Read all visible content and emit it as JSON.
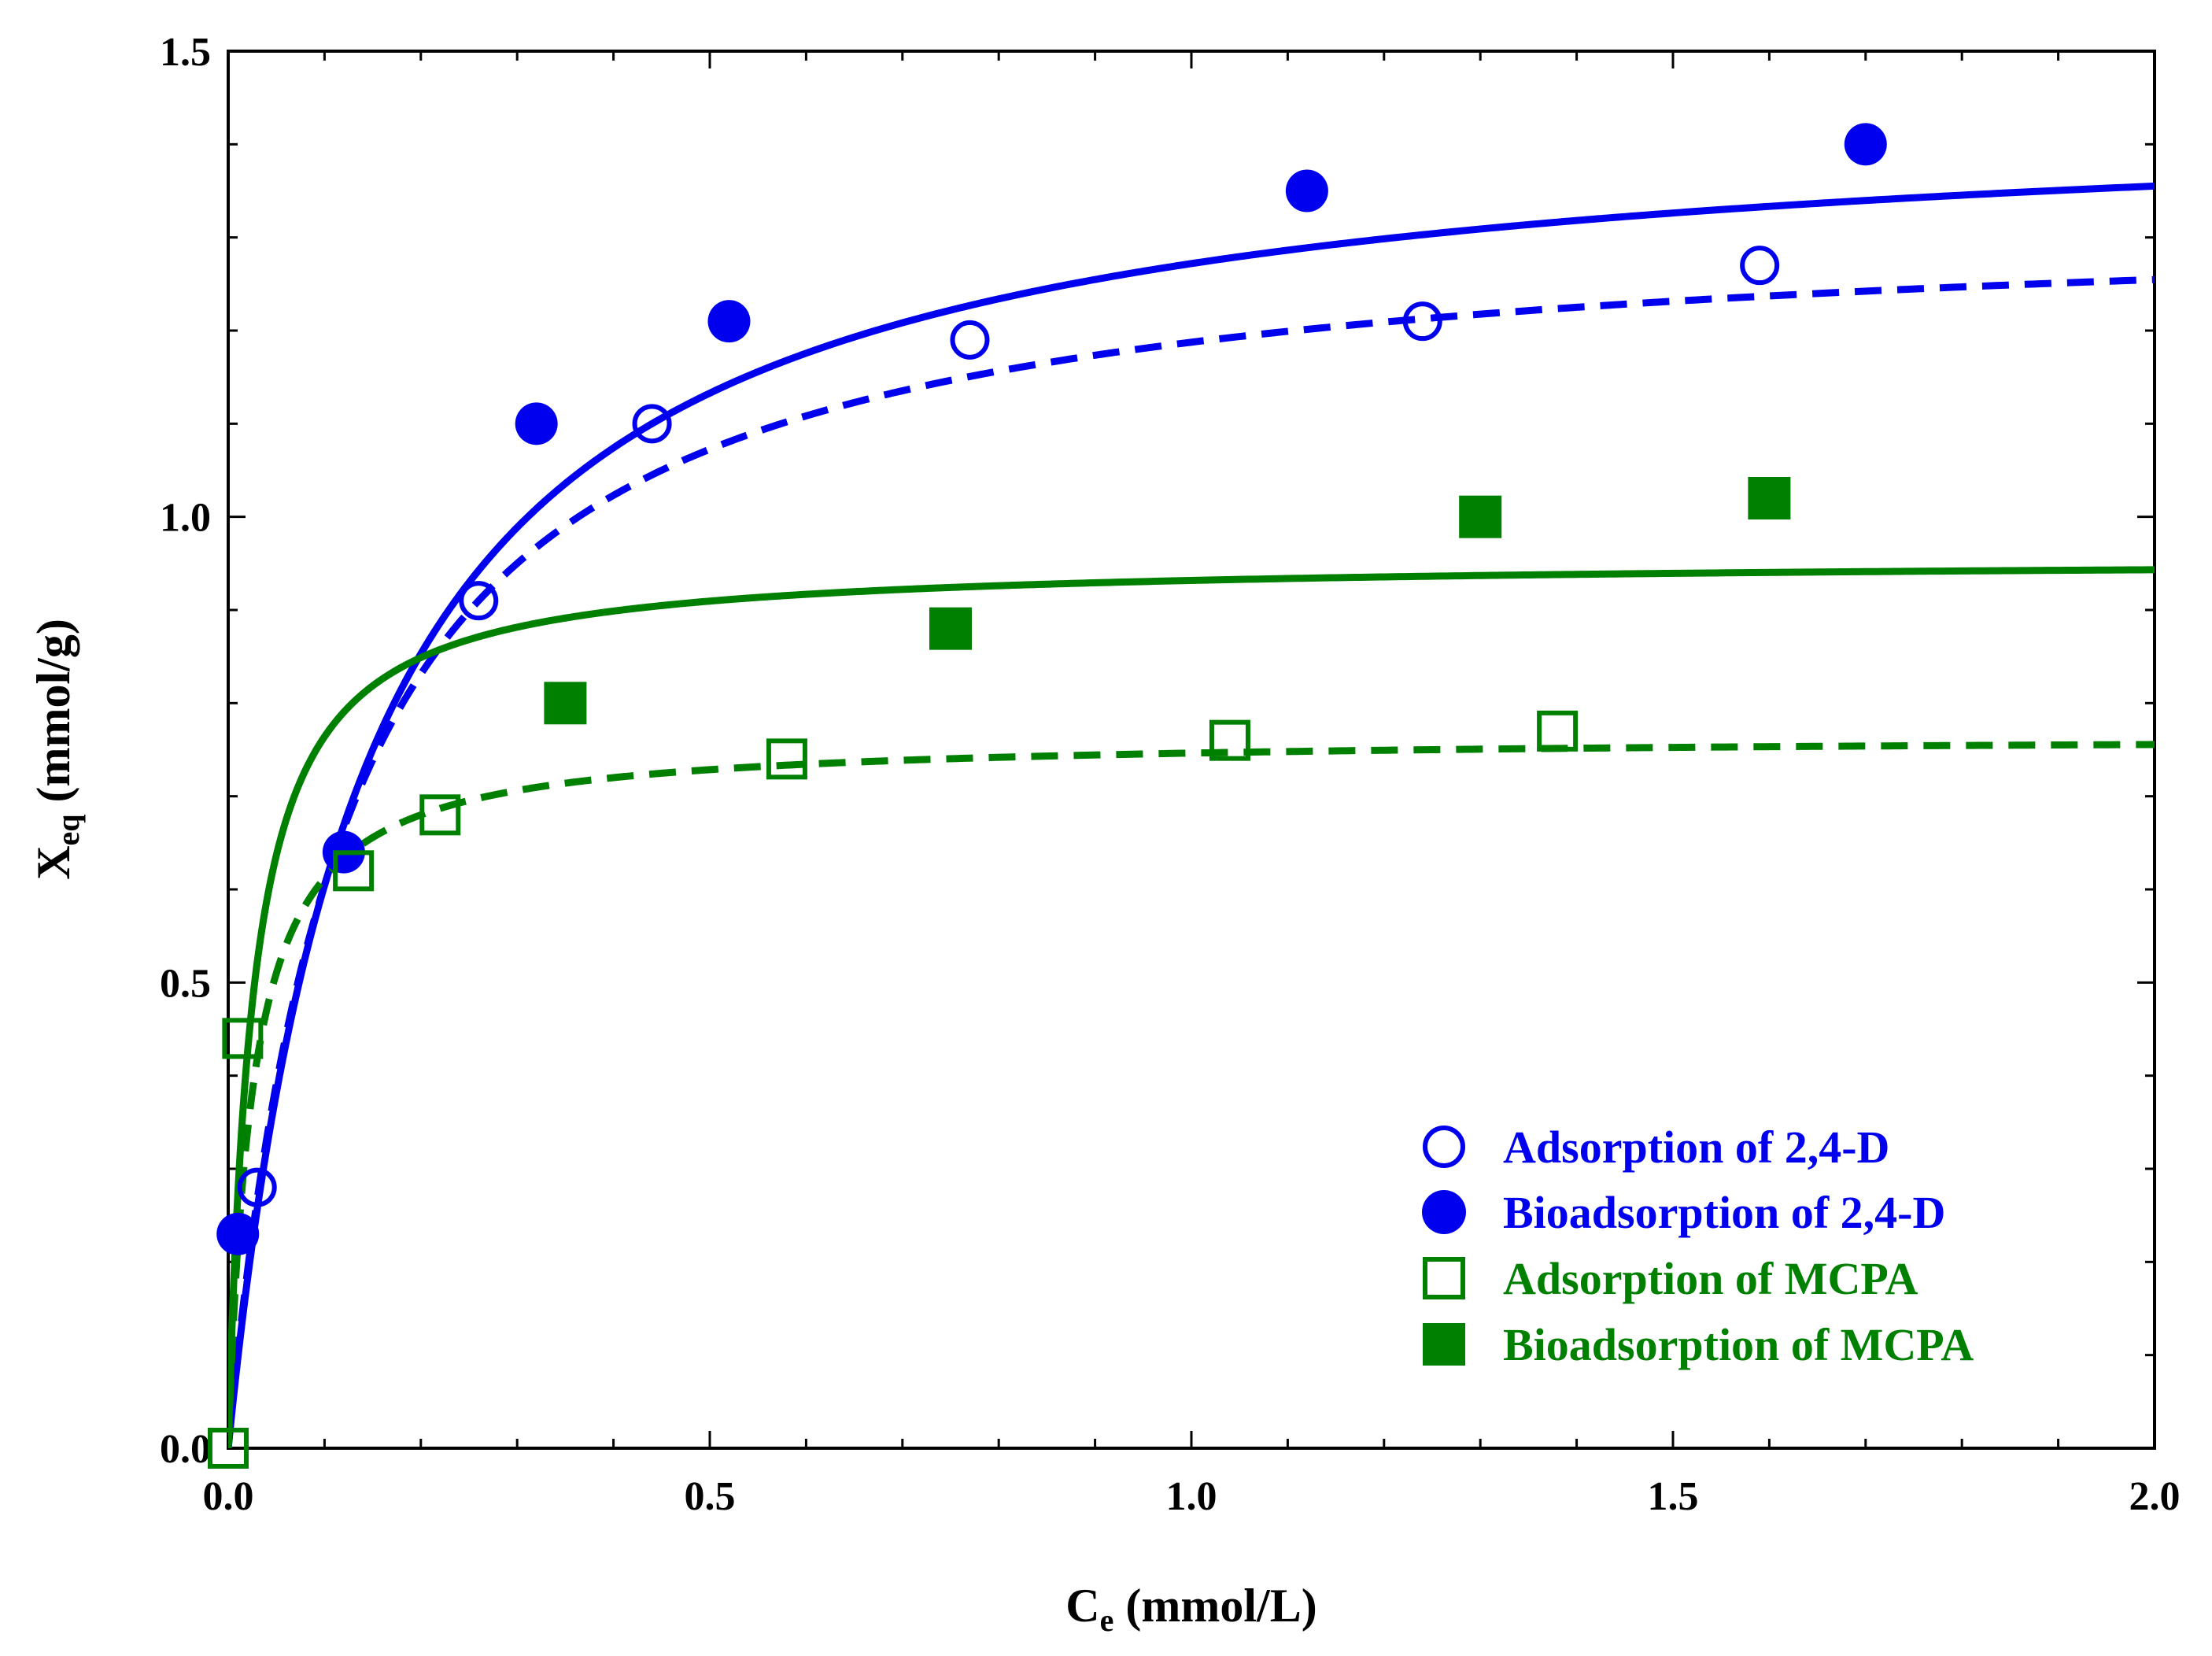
{
  "chart_data": {
    "type": "scatter",
    "title": "",
    "xlabel": {
      "main": "C",
      "sub": "e",
      "unit": " (mmol/L)"
    },
    "ylabel": {
      "main": "X",
      "sub": "eq",
      "unit": " (mmol/g)"
    },
    "xlim": [
      0,
      2.0
    ],
    "ylim": [
      0,
      1.5
    ],
    "xticks": [
      "0.0",
      "0.5",
      "1.0",
      "1.5",
      "2.0"
    ],
    "yticks": [
      "0.0",
      "0.5",
      "1.0",
      "1.5"
    ],
    "grid": false,
    "legend_position": "bottom-right",
    "colors": {
      "blue": "#0000ee",
      "green": "#008000"
    },
    "series": [
      {
        "name": "Adsorption of 2,4-D",
        "marker": "open-circle",
        "color": "#0000ee",
        "x": [
          0.03,
          0.26,
          0.44,
          0.77,
          1.24,
          1.59
        ],
        "y": [
          0.28,
          0.91,
          1.1,
          1.19,
          1.21,
          1.27
        ]
      },
      {
        "name": "Bioadsorption of 2,4-D",
        "marker": "filled-circle",
        "color": "#0000ee",
        "x": [
          0.01,
          0.12,
          0.32,
          0.52,
          1.12,
          1.7
        ],
        "y": [
          0.23,
          0.64,
          1.1,
          1.21,
          1.35,
          1.4
        ]
      },
      {
        "name": "Adsorption of MCPA",
        "marker": "open-square",
        "color": "#008000",
        "x": [
          0.0,
          0.015,
          0.13,
          0.22,
          0.58,
          1.04,
          1.38
        ],
        "y": [
          0.0,
          0.44,
          0.62,
          0.68,
          0.74,
          0.76,
          0.77
        ]
      },
      {
        "name": "Bioadsorption of MCPA",
        "marker": "filled-square",
        "color": "#008000",
        "x": [
          0.35,
          0.75,
          1.3,
          1.6
        ],
        "y": [
          0.8,
          0.88,
          1.0,
          1.02
        ]
      }
    ],
    "fits": [
      {
        "name": "Bioadsorption of 2,4-D fit",
        "style": "solid",
        "color": "#0000ee",
        "qmax": 1.45,
        "K": 0.14
      },
      {
        "name": "Adsorption of 2,4-D fit",
        "style": "dashed",
        "color": "#0000ee",
        "qmax": 1.33,
        "K": 0.12
      },
      {
        "name": "Bioadsorption of MCPA fit",
        "style": "solid",
        "color": "#008000",
        "qmax": 0.955,
        "K": 0.025
      },
      {
        "name": "Adsorption of MCPA fit",
        "style": "dashed",
        "color": "#008000",
        "qmax": 0.765,
        "K": 0.025
      }
    ]
  }
}
